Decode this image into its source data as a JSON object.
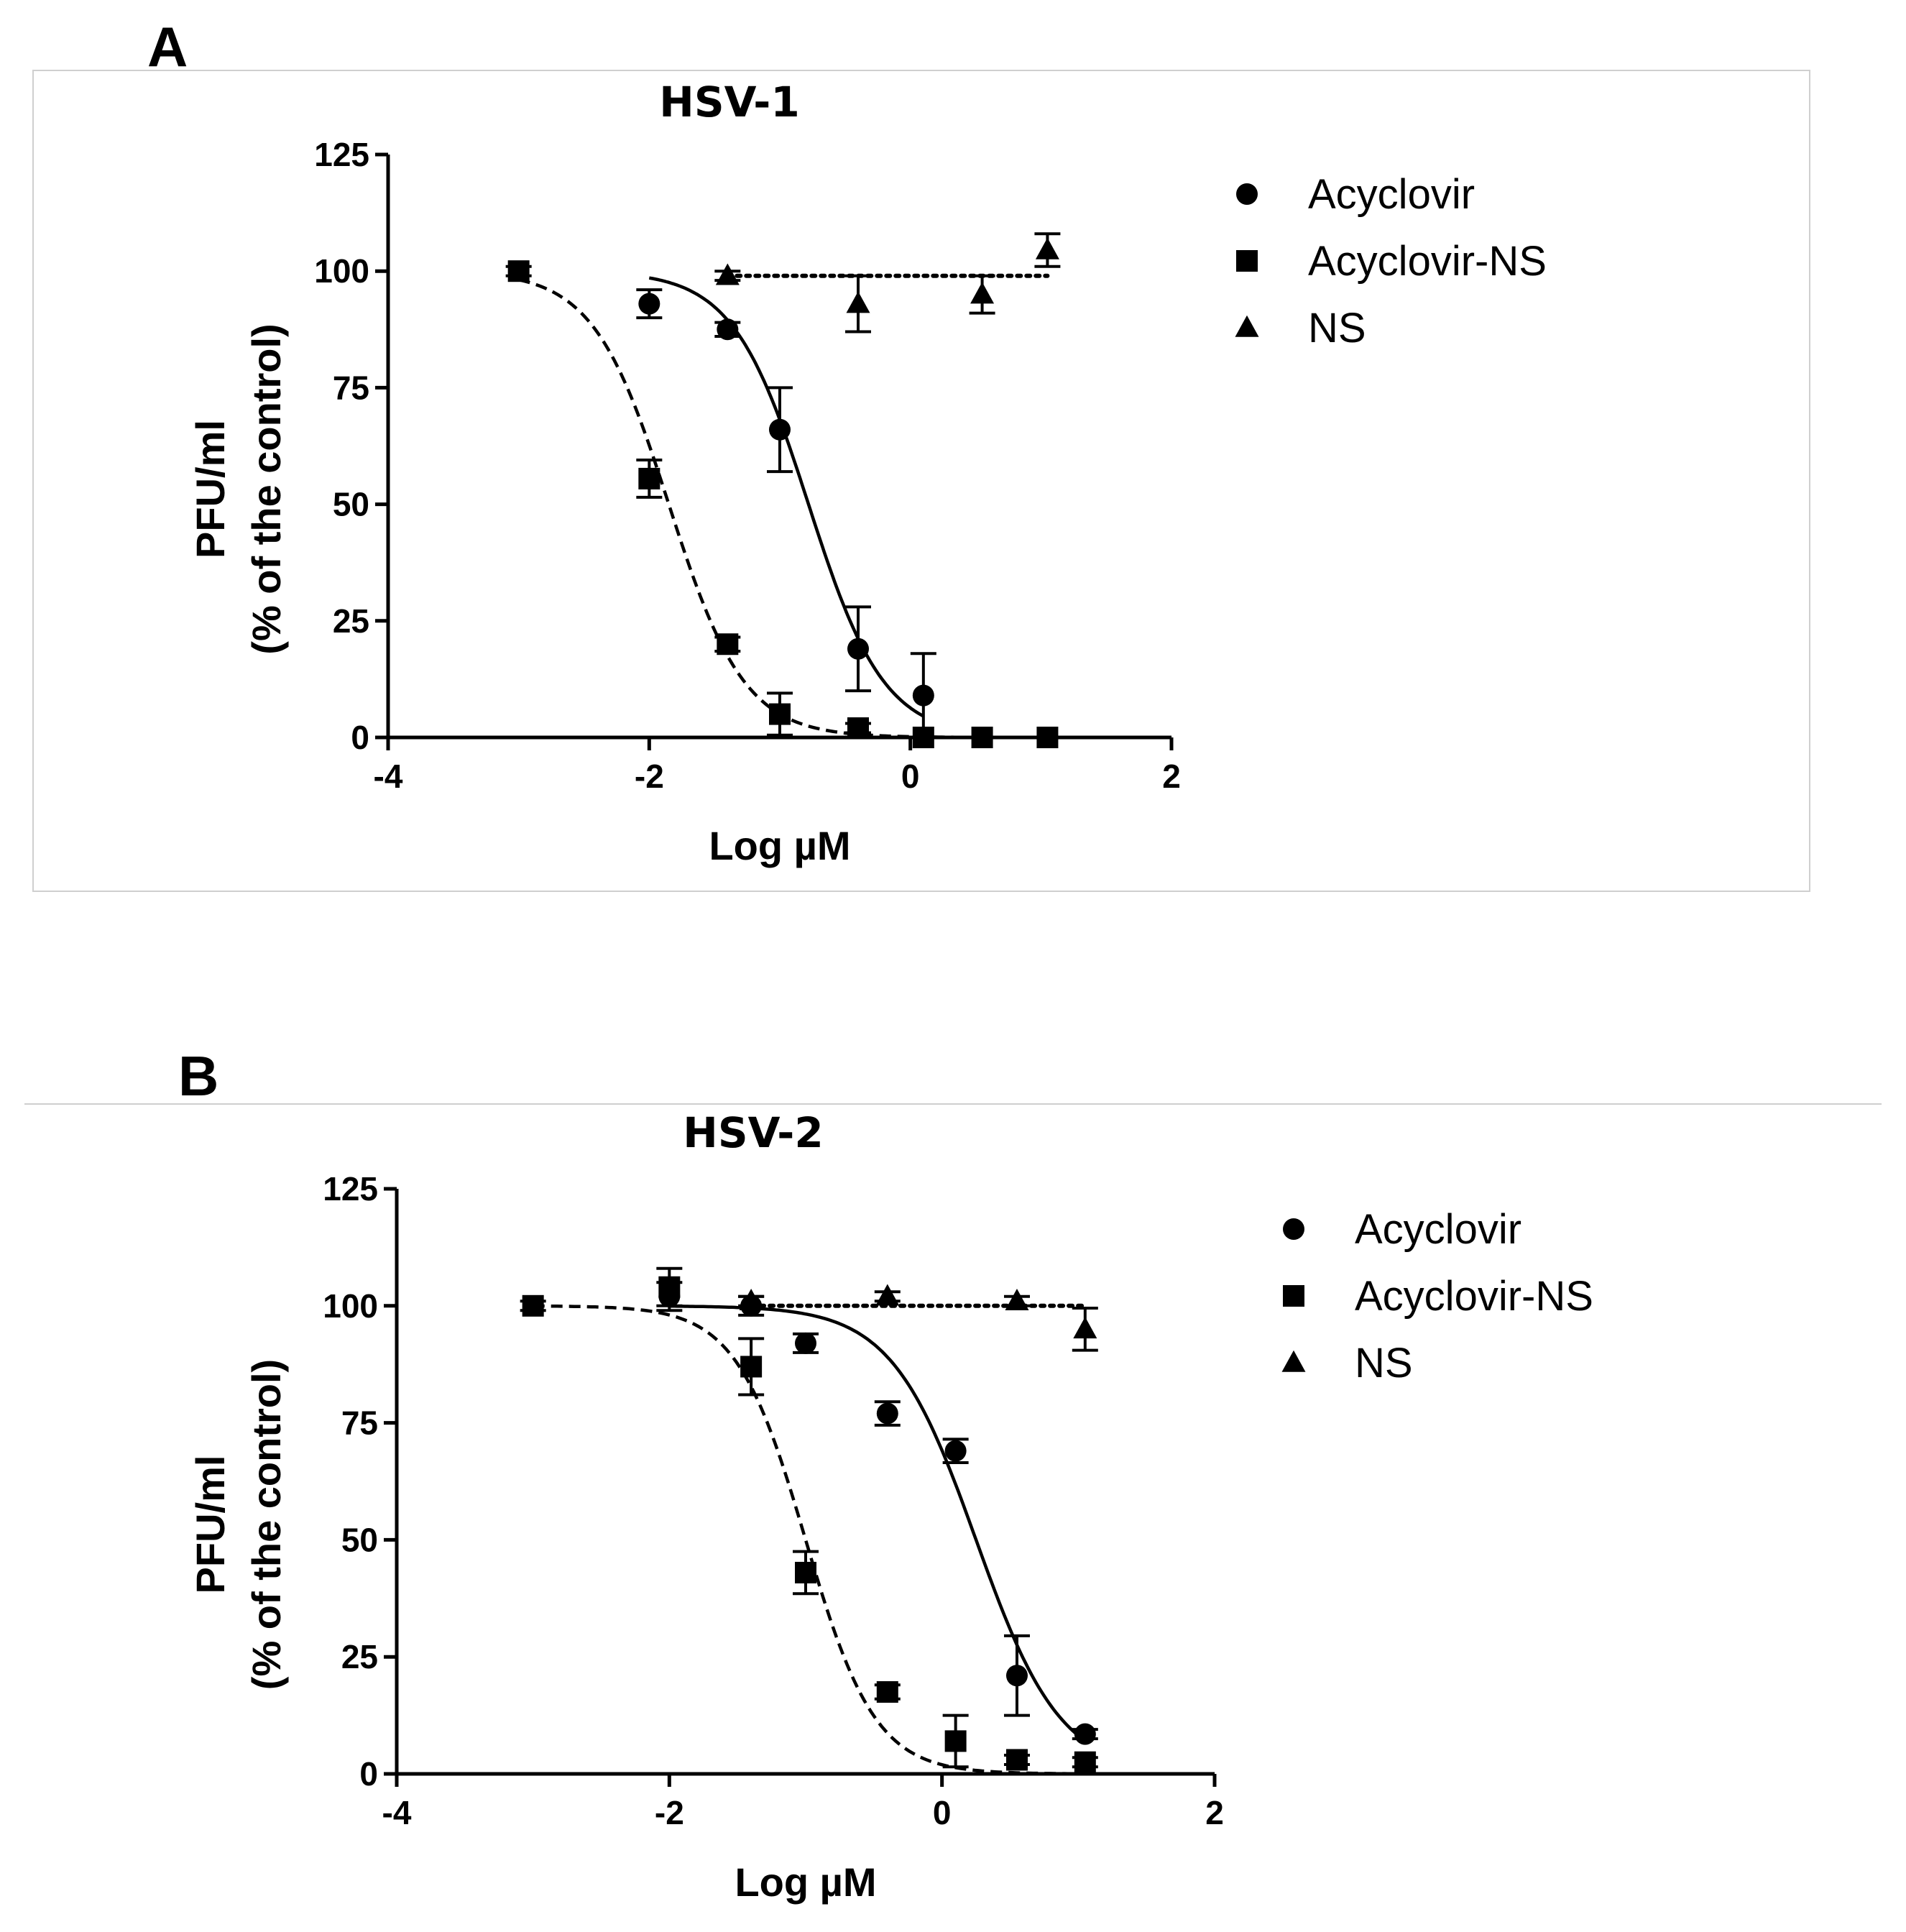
{
  "chart_data": [
    {
      "panel_label": "A",
      "type": "line",
      "title": "HSV-1",
      "xlabel": "Log µM",
      "ylabel_line1": "PFU/ml",
      "ylabel_line2": "(% of the control)",
      "xlim": [
        -4,
        2
      ],
      "ylim": [
        0,
        125
      ],
      "x_ticks": [
        "-4",
        "-2",
        "0",
        "2"
      ],
      "y_ticks": [
        "0",
        "25",
        "50",
        "75",
        "100",
        "125"
      ],
      "legend": "right",
      "series": [
        {
          "name": "Acyclovir",
          "marker": "circle",
          "line": "solid",
          "points": [
            {
              "x": -2.0,
              "y": 93,
              "err": 3
            },
            {
              "x": -1.4,
              "y": 87.5,
              "err": 1.5
            },
            {
              "x": -1.0,
              "y": 66,
              "err": 9
            },
            {
              "x": -0.4,
              "y": 19,
              "err": 9
            },
            {
              "x": 0.1,
              "y": 9,
              "err": 9
            }
          ],
          "fit": {
            "top": 100,
            "bottom": 0,
            "logIC50": -0.78,
            "hill": 1.5
          }
        },
        {
          "name": "Acyclovir-NS",
          "marker": "square",
          "line": "dashed",
          "points": [
            {
              "x": -3.0,
              "y": 100,
              "err": 1
            },
            {
              "x": -2.0,
              "y": 55.5,
              "err": 4
            },
            {
              "x": -1.4,
              "y": 20,
              "err": 1.5
            },
            {
              "x": -1.0,
              "y": 5,
              "err": 4.5
            },
            {
              "x": -0.4,
              "y": 2,
              "err": 1
            },
            {
              "x": 0.1,
              "y": 0,
              "err": 0
            },
            {
              "x": 0.55,
              "y": 0,
              "err": 0
            },
            {
              "x": 1.05,
              "y": 0,
              "err": 0
            }
          ],
          "fit": {
            "top": 100,
            "bottom": 0,
            "logIC50": -1.85,
            "hill": 1.5
          }
        },
        {
          "name": "NS",
          "marker": "triangle",
          "line": "dotted",
          "points": [
            {
              "x": -1.4,
              "y": 99,
              "err": 1
            },
            {
              "x": -0.4,
              "y": 93,
              "err": 6
            },
            {
              "x": 0.55,
              "y": 95,
              "err": 4
            },
            {
              "x": 1.05,
              "y": 104.5,
              "err": 3.5
            }
          ],
          "fit": {
            "flat": 99
          }
        }
      ]
    },
    {
      "panel_label": "B",
      "type": "line",
      "title": "HSV-2",
      "xlabel": "Log µM",
      "ylabel_line1": "PFU/ml",
      "ylabel_line2": "(% of the control)",
      "xlim": [
        -4,
        2
      ],
      "ylim": [
        0,
        125
      ],
      "x_ticks": [
        "-4",
        "-2",
        "0",
        "2"
      ],
      "y_ticks": [
        "0",
        "25",
        "50",
        "75",
        "100",
        "125"
      ],
      "legend": "right",
      "series": [
        {
          "name": "Acyclovir",
          "marker": "circle",
          "line": "solid",
          "points": [
            {
              "x": -2.0,
              "y": 102,
              "err": 3
            },
            {
              "x": -1.4,
              "y": 100,
              "err": 2
            },
            {
              "x": -1.0,
              "y": 92,
              "err": 2
            },
            {
              "x": -0.4,
              "y": 77,
              "err": 2.5
            },
            {
              "x": 0.1,
              "y": 69,
              "err": 2.5
            },
            {
              "x": 0.55,
              "y": 21,
              "err": 8.5
            },
            {
              "x": 1.05,
              "y": 8.5,
              "err": 1
            }
          ],
          "fit": {
            "top": 100,
            "bottom": 0,
            "logIC50": 0.25,
            "hill": 1.4
          }
        },
        {
          "name": "Acyclovir-NS",
          "marker": "square",
          "line": "dashed",
          "points": [
            {
              "x": -3.0,
              "y": 100,
              "err": 1
            },
            {
              "x": -2.0,
              "y": 104,
              "err": 4
            },
            {
              "x": -1.4,
              "y": 87,
              "err": 6
            },
            {
              "x": -1.0,
              "y": 43,
              "err": 4.5
            },
            {
              "x": -0.4,
              "y": 17.5,
              "err": 1.5
            },
            {
              "x": 0.1,
              "y": 7,
              "err": 5.5
            },
            {
              "x": 0.55,
              "y": 3,
              "err": 1
            },
            {
              "x": 1.05,
              "y": 2.5,
              "err": 1
            }
          ],
          "fit": {
            "top": 100,
            "bottom": 0,
            "logIC50": -1.0,
            "hill": 1.7
          }
        },
        {
          "name": "NS",
          "marker": "triangle",
          "line": "dotted",
          "points": [
            {
              "x": -1.4,
              "y": 101,
              "err": 1
            },
            {
              "x": -0.4,
              "y": 102,
              "err": 1
            },
            {
              "x": 0.55,
              "y": 101,
              "err": 1
            },
            {
              "x": 1.05,
              "y": 95,
              "err": 4.5
            }
          ],
          "fit": {
            "flat": 100
          }
        }
      ]
    }
  ]
}
